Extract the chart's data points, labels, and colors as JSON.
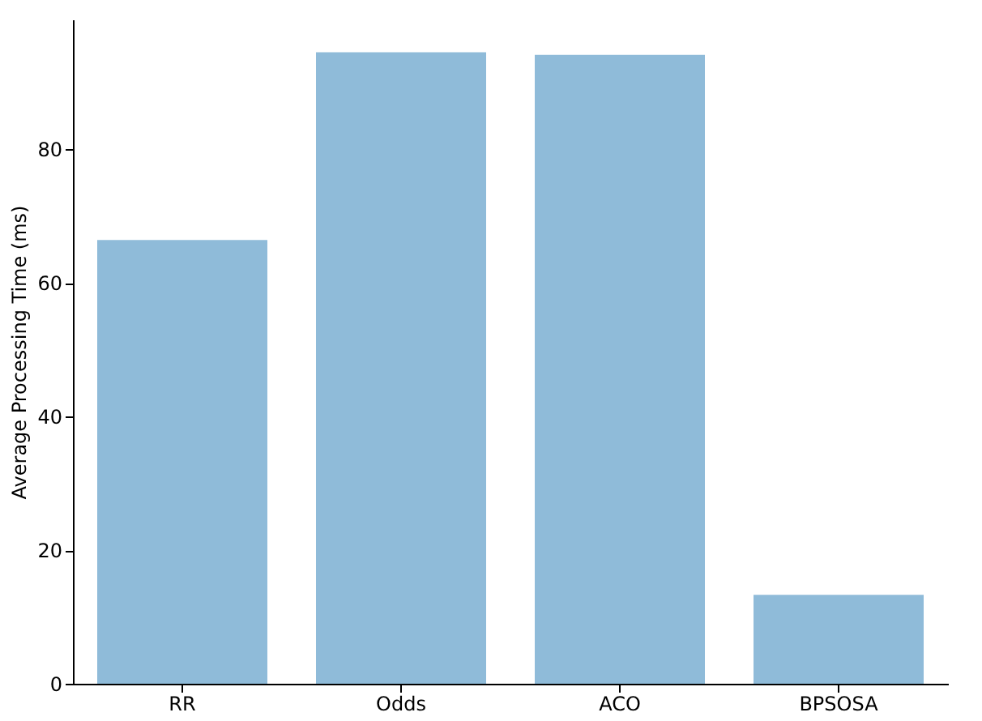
{
  "chart_data": {
    "type": "bar",
    "ylabel": "Average Processing Time (ms)",
    "categories": [
      "RR",
      "Odds",
      "ACO",
      "BPSOSA"
    ],
    "values": [
      66.4,
      94.5,
      94.1,
      13.3
    ],
    "color": "#8fbbd9",
    "ylim": [
      0,
      99.4
    ],
    "yticks": [
      0,
      20,
      40,
      60,
      80
    ],
    "grid": false
  }
}
